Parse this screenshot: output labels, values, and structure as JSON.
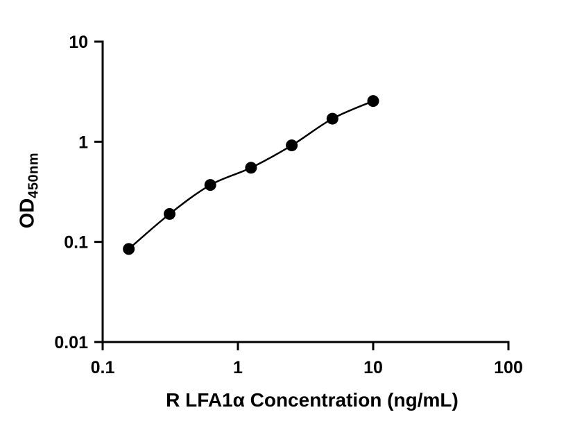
{
  "figure": {
    "background": "#ffffff"
  },
  "chart": {
    "xlabel": "R LFA1α Concentration (ng/mL)",
    "ylabel_main": "OD",
    "ylabel_sub": "450nm"
  },
  "chart_data": {
    "type": "scatter",
    "subtype": "log-log ELISA standard curve with fitted line",
    "title": "",
    "xlabel": "R LFA1α Concentration (ng/mL)",
    "ylabel": "OD450nm",
    "x_scale": "log10",
    "y_scale": "log10",
    "xlim": [
      0.1,
      100
    ],
    "ylim": [
      0.01,
      10
    ],
    "x_ticks": [
      0.1,
      1,
      10,
      100
    ],
    "x_tick_labels": [
      "0.1",
      "1",
      "10",
      "100"
    ],
    "y_ticks": [
      0.01,
      0.1,
      1,
      10
    ],
    "y_tick_labels": [
      "0.01",
      "0.1",
      "1",
      "10"
    ],
    "grid": false,
    "legend": "none",
    "marker": "filled-circle",
    "marker_color": "#000000",
    "line_color": "#000000",
    "axis_color": "#000000",
    "points": {
      "x": [
        0.156,
        0.3125,
        0.625,
        1.25,
        2.5,
        5,
        10
      ],
      "y": [
        0.085,
        0.19,
        0.37,
        0.55,
        0.92,
        1.7,
        2.55
      ]
    }
  }
}
